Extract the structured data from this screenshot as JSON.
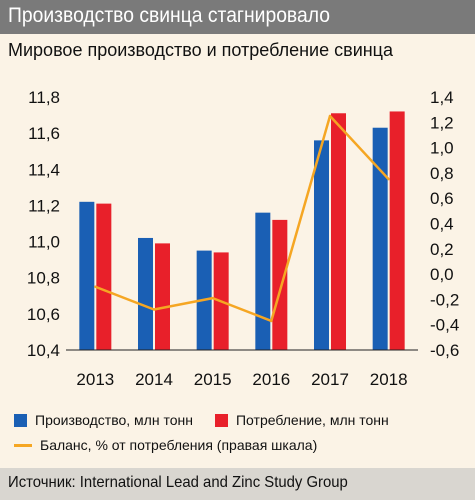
{
  "header": {
    "title": "Производство свинца стагнировало",
    "subtitle": "Мировое производство и потребление свинца"
  },
  "colors": {
    "production": "#1a5fb4",
    "consumption": "#e8202a",
    "balance": "#f5a623",
    "header_bg": "#7a7a7a",
    "background": "#fbf3e6"
  },
  "chart_data": {
    "type": "bar",
    "categories": [
      "2013",
      "2014",
      "2015",
      "2016",
      "2017",
      "2018"
    ],
    "series": [
      {
        "name": "Производство, млн тонн",
        "axis": "left",
        "type": "bar",
        "values": [
          11.22,
          11.02,
          10.95,
          11.16,
          11.56,
          11.63
        ]
      },
      {
        "name": "Потребление, млн тонн",
        "axis": "left",
        "type": "bar",
        "values": [
          11.21,
          10.99,
          10.94,
          11.12,
          11.71,
          11.72
        ]
      },
      {
        "name": "Баланс, % от потребления (правая шкала)",
        "axis": "right",
        "type": "line",
        "values": [
          -0.1,
          -0.28,
          -0.19,
          -0.37,
          1.25,
          0.75
        ]
      }
    ],
    "y_left": {
      "lim": [
        10.4,
        11.8
      ],
      "ticks": [
        "10,4",
        "10,6",
        "10,8",
        "11,0",
        "11,2",
        "11,4",
        "11,6",
        "11,8"
      ]
    },
    "y_right": {
      "lim": [
        -0.6,
        1.4
      ],
      "ticks": [
        "-0,6",
        "-0,4",
        "-0,2",
        "0,0",
        "0,2",
        "0,4",
        "0,6",
        "0,8",
        "1,0",
        "1,2",
        "1,4"
      ]
    },
    "grid": false,
    "legend_position": "bottom"
  },
  "source": "Источник: International Lead and Zinc Study Group"
}
